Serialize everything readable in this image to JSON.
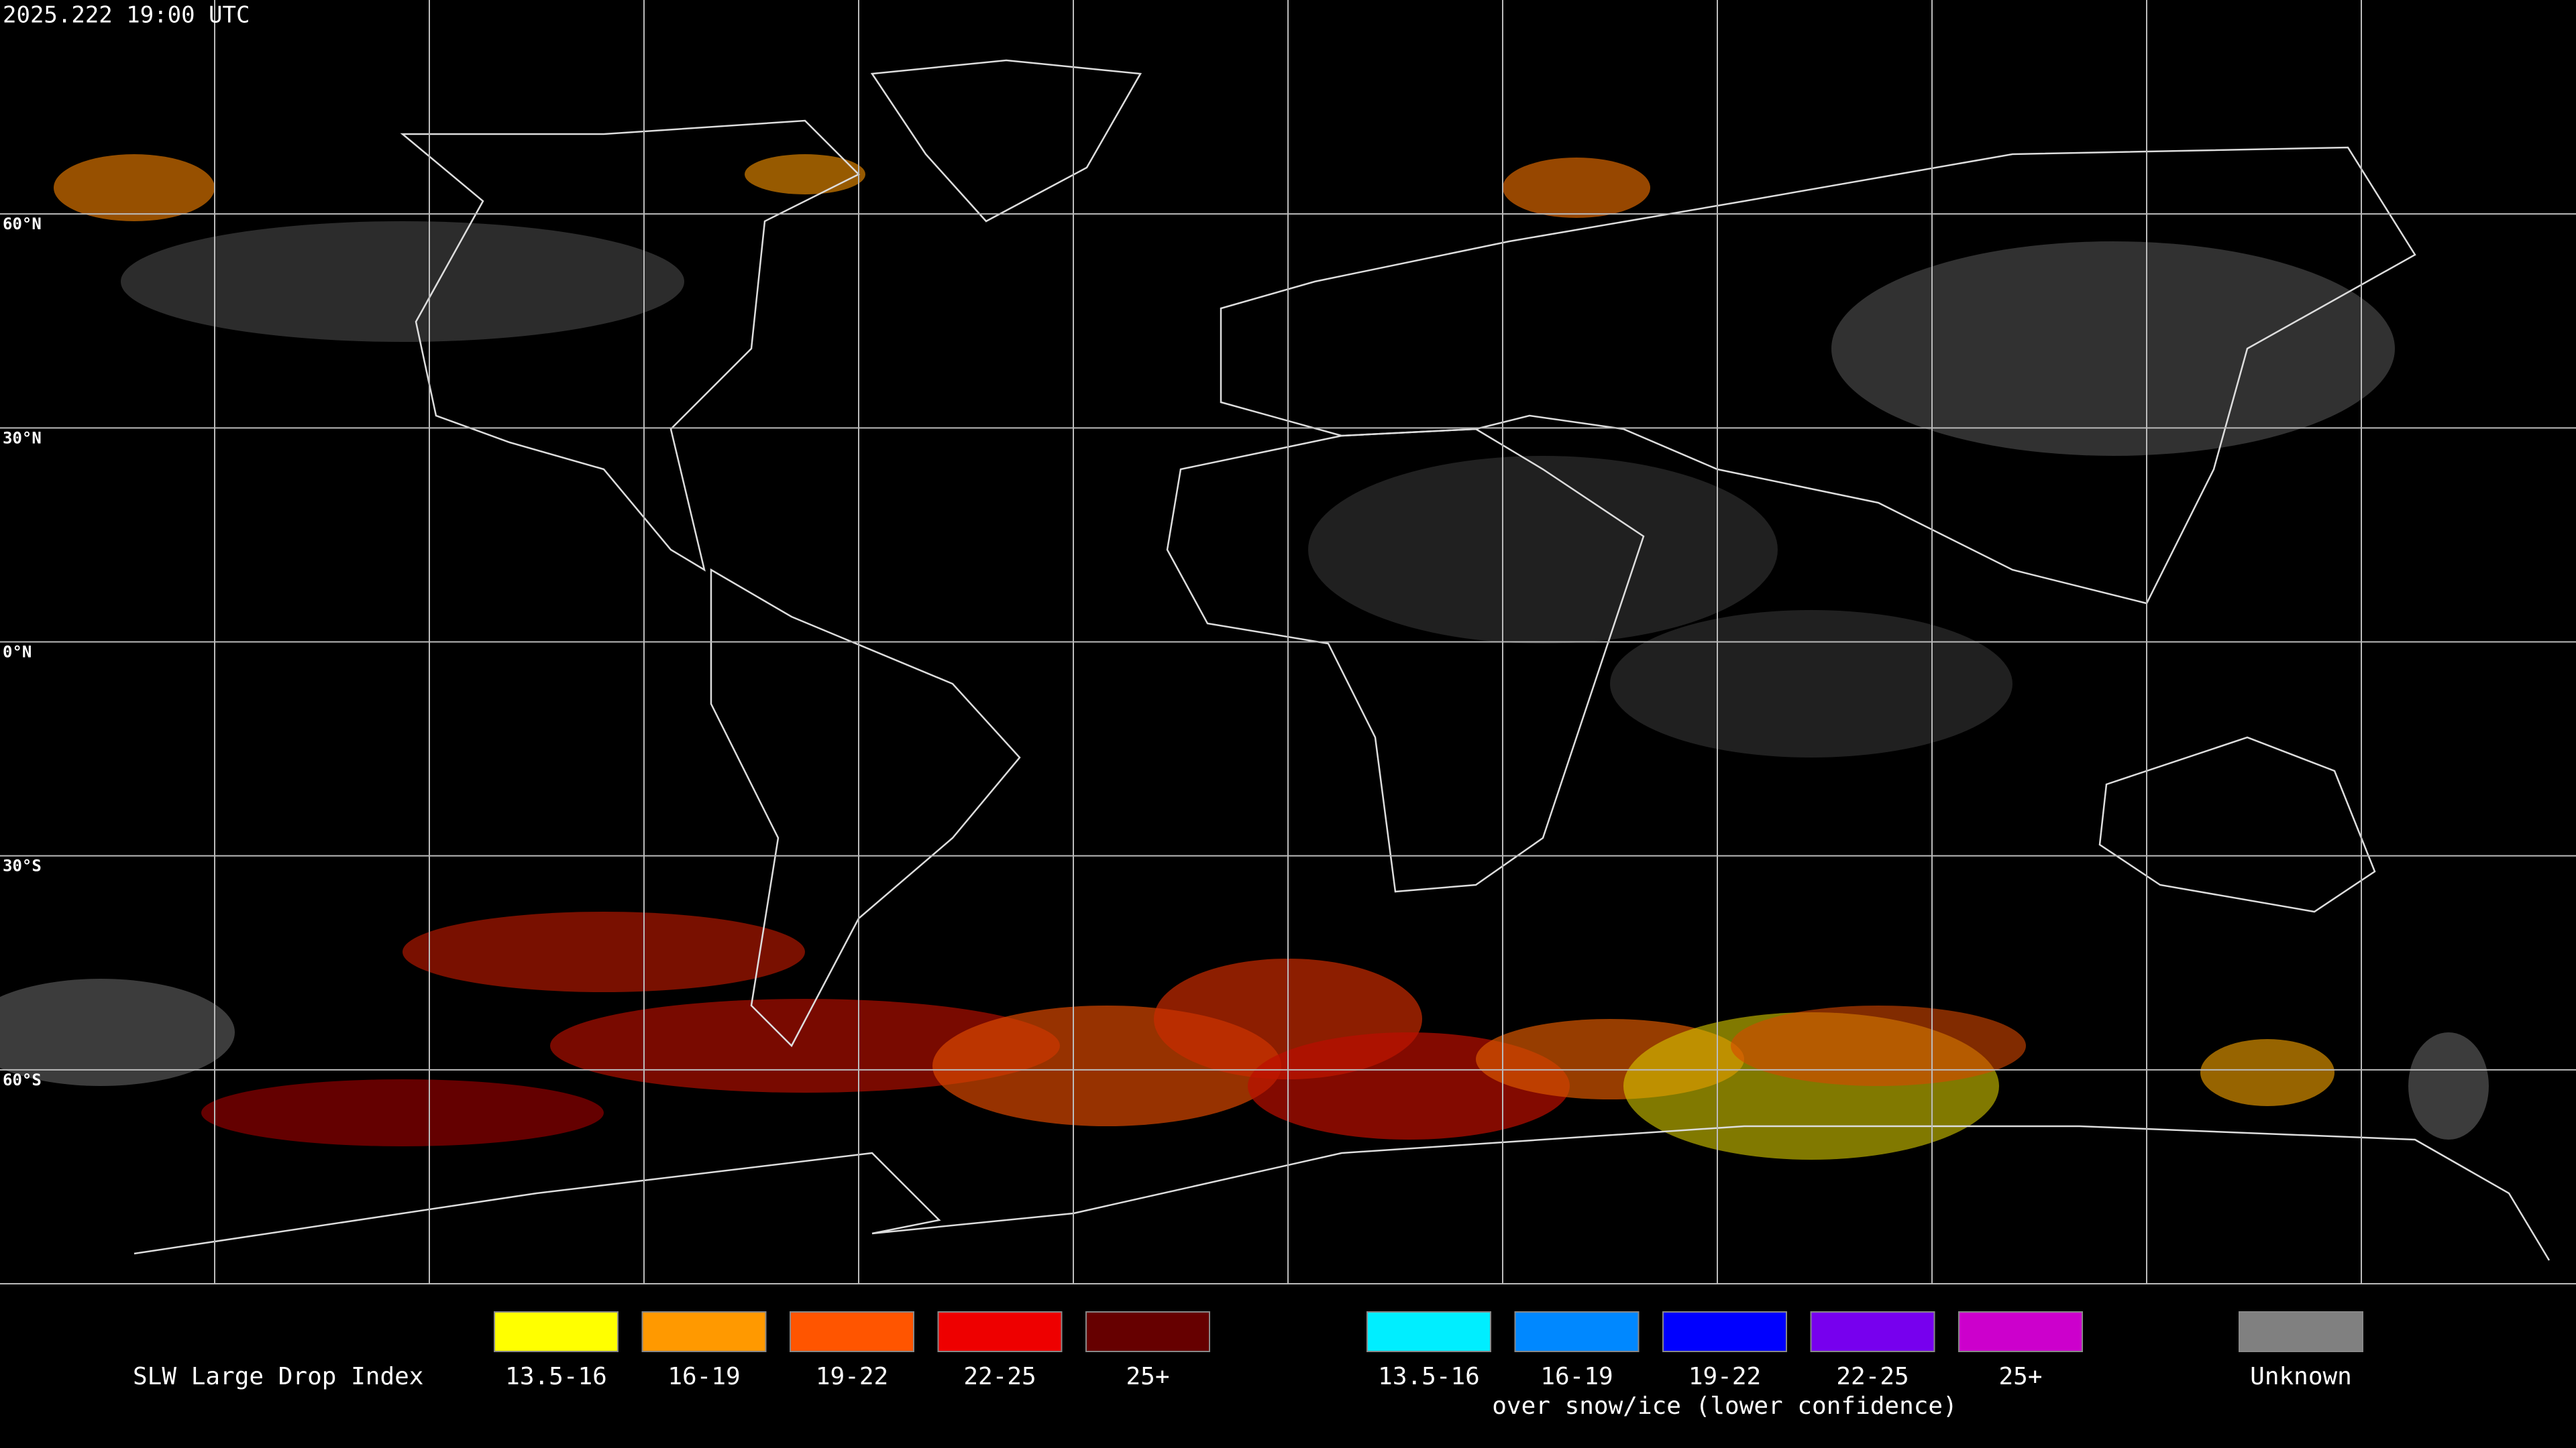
{
  "timestamp": "2025.222 19:00 UTC",
  "latitude_labels": [
    "60°N",
    "30°N",
    "0°N",
    "30°S",
    "60°S"
  ],
  "legend": {
    "title": "SLW Large Drop Index",
    "groups": [
      {
        "items": [
          {
            "label": "13.5-16",
            "color": "#ffff00"
          },
          {
            "label": "16-19",
            "color": "#ff9900"
          },
          {
            "label": "19-22",
            "color": "#ff5500"
          },
          {
            "label": "22-25",
            "color": "#ee0000"
          },
          {
            "label": "25+",
            "color": "#660000"
          }
        ]
      },
      {
        "items": [
          {
            "label": "13.5-16",
            "color": "#00eeff"
          },
          {
            "label": "16-19",
            "color": "#0088ff"
          },
          {
            "label": "19-22",
            "color": "#0000ff"
          },
          {
            "label": "22-25",
            "color": "#7700ee"
          },
          {
            "label": "25+",
            "color": "#cc00cc"
          }
        ],
        "caption": "over snow/ice (lower confidence)"
      }
    ],
    "unknown": {
      "label": "Unknown",
      "color": "#808080"
    }
  }
}
